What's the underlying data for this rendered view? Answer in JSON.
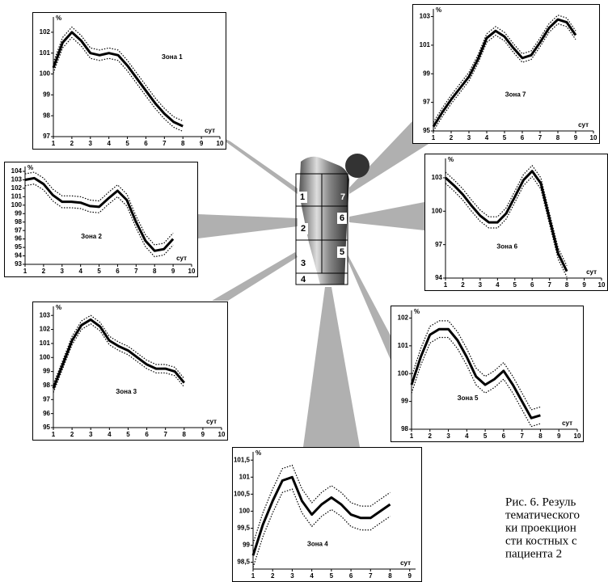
{
  "chart_data": [
    {
      "type": "line",
      "title": "Зона 1",
      "xlabel": "сут",
      "ylabel": "%",
      "xlim": [
        1,
        10
      ],
      "xticks": [
        1,
        2,
        3,
        4,
        5,
        6,
        7,
        8,
        9,
        10
      ],
      "ylim": [
        97,
        102.5
      ],
      "yticks": [
        97,
        98,
        99,
        100,
        101,
        102
      ],
      "x": [
        1,
        1.5,
        2,
        2.5,
        3,
        3.5,
        4,
        4.5,
        5,
        5.5,
        6,
        6.5,
        7,
        7.5,
        8
      ],
      "series": [
        {
          "color": "#000000",
          "values": [
            100.3,
            101.5,
            102,
            101.6,
            101,
            100.9,
            101,
            100.9,
            100.4,
            99.8,
            99.2,
            98.6,
            98.1,
            97.7,
            97.5
          ]
        },
        {
          "color": "#000000",
          "dashed": true,
          "values": [
            100.55,
            101.75,
            102.25,
            101.85,
            101.25,
            101.15,
            101.25,
            101.15,
            100.65,
            100.05,
            99.45,
            98.85,
            98.35,
            97.95,
            97.75
          ]
        },
        {
          "color": "#000000",
          "dashed": true,
          "values": [
            100.05,
            101.25,
            101.75,
            101.35,
            100.75,
            100.65,
            100.75,
            100.65,
            100.15,
            99.55,
            98.95,
            98.35,
            97.85,
            97.45,
            97.25
          ]
        }
      ]
    },
    {
      "type": "line",
      "title": "Зона 7",
      "xlabel": "сут",
      "ylabel": "%",
      "xlim": [
        1,
        10
      ],
      "xticks": [
        1,
        2,
        3,
        4,
        5,
        6,
        7,
        8,
        9,
        10
      ],
      "ylim": [
        95,
        103.2
      ],
      "yticks": [
        95,
        97,
        99,
        101,
        103
      ],
      "x": [
        1,
        1.5,
        2,
        2.5,
        3,
        3.5,
        4,
        4.5,
        5,
        5.5,
        6,
        6.5,
        7,
        7.5,
        8,
        8.5,
        9
      ],
      "series": [
        {
          "color": "#000000",
          "values": [
            95.3,
            96.3,
            97.2,
            98,
            98.8,
            100,
            101.5,
            102,
            101.6,
            100.8,
            100.1,
            100.3,
            101.2,
            102.2,
            102.8,
            102.6,
            101.7
          ]
        },
        {
          "color": "#000000",
          "dashed": true,
          "values": [
            95.6,
            96.6,
            97.5,
            98.3,
            99.1,
            100.3,
            101.8,
            102.3,
            101.9,
            101.1,
            100.4,
            100.6,
            101.5,
            102.5,
            103.1,
            102.9,
            102
          ]
        },
        {
          "color": "#000000",
          "dashed": true,
          "values": [
            95,
            96,
            96.9,
            97.7,
            98.5,
            99.7,
            101.2,
            101.7,
            101.3,
            100.5,
            99.8,
            100,
            100.9,
            101.9,
            102.5,
            102.3,
            101.4
          ]
        }
      ]
    },
    {
      "type": "line",
      "title": "Зона 2",
      "xlabel": "сут",
      "ylabel": "%",
      "xlim": [
        1,
        10
      ],
      "xticks": [
        1,
        2,
        3,
        4,
        5,
        6,
        7,
        8,
        9,
        10
      ],
      "ylim": [
        93,
        104
      ],
      "yticks": [
        93,
        94,
        95,
        96,
        97,
        98,
        99,
        100,
        101,
        102,
        103,
        104
      ],
      "x": [
        1,
        1.5,
        2,
        2.5,
        3,
        3.5,
        4,
        4.5,
        5,
        5.5,
        6,
        6.5,
        7,
        7.5,
        8,
        8.5,
        9
      ],
      "series": [
        {
          "color": "#000000",
          "values": [
            103,
            103.2,
            102.5,
            101.2,
            100.4,
            100.4,
            100.3,
            99.9,
            99.8,
            100.8,
            101.7,
            100.6,
            98,
            95.8,
            94.6,
            94.8,
            96
          ]
        },
        {
          "color": "#000000",
          "dashed": true,
          "values": [
            103.7,
            103.9,
            103.2,
            101.9,
            101.1,
            101.1,
            101,
            100.6,
            100.5,
            101.5,
            102.4,
            101.3,
            98.7,
            96.5,
            95.3,
            95.5,
            96.7
          ]
        },
        {
          "color": "#000000",
          "dashed": true,
          "values": [
            102.3,
            102.5,
            101.8,
            100.5,
            99.7,
            99.7,
            99.6,
            99.2,
            99.1,
            100.1,
            101,
            99.9,
            97.3,
            95.1,
            93.9,
            94.1,
            95.3
          ]
        }
      ]
    },
    {
      "type": "line",
      "title": "Зона 6",
      "xlabel": "сут",
      "ylabel": "%",
      "xlim": [
        1,
        10
      ],
      "xticks": [
        1,
        2,
        3,
        4,
        5,
        6,
        7,
        8,
        9,
        10
      ],
      "ylim": [
        94,
        104.3
      ],
      "yticks": [
        94,
        97,
        100,
        103
      ],
      "x": [
        1,
        1.5,
        2,
        2.5,
        3,
        3.5,
        4,
        4.5,
        5,
        5.5,
        6,
        6.5,
        7,
        7.5,
        8
      ],
      "series": [
        {
          "color": "#000000",
          "values": [
            103,
            102.3,
            101.5,
            100.5,
            99.6,
            99,
            99,
            99.8,
            101.3,
            102.8,
            103.6,
            102.5,
            99.3,
            96.2,
            94.6
          ]
        },
        {
          "color": "#000000",
          "dashed": true,
          "values": [
            103.5,
            102.8,
            102,
            101,
            100.1,
            99.5,
            99.5,
            100.3,
            101.8,
            103.3,
            104.1,
            103,
            99.8,
            96.7,
            95.1
          ]
        },
        {
          "color": "#000000",
          "dashed": true,
          "values": [
            102.5,
            101.8,
            101,
            100,
            99.1,
            98.5,
            98.5,
            99.3,
            100.8,
            102.3,
            103.1,
            102,
            98.8,
            95.7,
            94.1
          ]
        }
      ]
    },
    {
      "type": "line",
      "title": "Зона 3",
      "xlabel": "сут",
      "ylabel": "%",
      "xlim": [
        1,
        10
      ],
      "xticks": [
        1,
        2,
        3,
        4,
        5,
        6,
        7,
        8,
        9,
        10
      ],
      "ylim": [
        95,
        103.3
      ],
      "yticks": [
        95,
        96,
        97,
        98,
        99,
        100,
        101,
        102,
        103
      ],
      "x": [
        1,
        1.5,
        2,
        2.5,
        3,
        3.5,
        4,
        4.5,
        5,
        5.5,
        6,
        6.5,
        7,
        7.5,
        8
      ],
      "series": [
        {
          "color": "#000000",
          "values": [
            97.8,
            99.5,
            101.2,
            102.3,
            102.7,
            102.2,
            101.2,
            100.8,
            100.5,
            100,
            99.5,
            99.2,
            99.2,
            99,
            98.2
          ]
        },
        {
          "color": "#000000",
          "dashed": true,
          "values": [
            98.1,
            99.8,
            101.5,
            102.6,
            103,
            102.5,
            101.5,
            101.1,
            100.8,
            100.3,
            99.8,
            99.5,
            99.5,
            99.3,
            98.5
          ]
        },
        {
          "color": "#000000",
          "dashed": true,
          "values": [
            97.5,
            99.2,
            100.9,
            102,
            102.4,
            101.9,
            100.9,
            100.5,
            100.2,
            99.7,
            99.2,
            98.9,
            98.9,
            98.7,
            97.9
          ]
        }
      ]
    },
    {
      "type": "line",
      "title": "Зона 5",
      "xlabel": "сут",
      "ylabel": "%",
      "xlim": [
        1,
        10
      ],
      "xticks": [
        1,
        2,
        3,
        4,
        5,
        6,
        7,
        8,
        9,
        10
      ],
      "ylim": [
        98,
        102.1
      ],
      "yticks": [
        98,
        99,
        100,
        101,
        102
      ],
      "x": [
        1,
        1.5,
        2,
        2.5,
        3,
        3.5,
        4,
        4.5,
        5,
        5.5,
        6,
        6.5,
        7,
        7.5,
        8
      ],
      "series": [
        {
          "color": "#000000",
          "values": [
            99.6,
            100.6,
            101.4,
            101.6,
            101.6,
            101.2,
            100.6,
            99.9,
            99.6,
            99.8,
            100.1,
            99.6,
            99,
            98.4,
            98.5
          ]
        },
        {
          "color": "#000000",
          "dashed": true,
          "values": [
            99.9,
            100.9,
            101.7,
            101.9,
            101.9,
            101.5,
            100.9,
            100.2,
            99.9,
            100.1,
            100.4,
            99.9,
            99.3,
            98.7,
            98.8
          ]
        },
        {
          "color": "#000000",
          "dashed": true,
          "values": [
            99.3,
            100.3,
            101.1,
            101.3,
            101.3,
            100.9,
            100.3,
            99.6,
            99.3,
            99.5,
            99.8,
            99.3,
            98.7,
            98.1,
            98.2
          ]
        }
      ]
    },
    {
      "type": "line",
      "title": "Зона 4",
      "xlabel": "сут",
      "ylabel": "%",
      "xlim": [
        1,
        9.3
      ],
      "xticks": [
        1,
        2,
        3,
        4,
        5,
        6,
        7,
        8,
        9
      ],
      "ylim": [
        98.3,
        101.6
      ],
      "yticks": [
        {
          "value": 98.5,
          "label": "98,5"
        },
        99,
        {
          "value": 99.5,
          "label": "99,5"
        },
        100,
        {
          "value": 100.5,
          "label": "100,5"
        },
        101,
        {
          "value": 101.5,
          "label": "101,5"
        }
      ],
      "x": [
        1,
        1.5,
        2,
        2.5,
        3,
        3.5,
        4,
        4.5,
        5,
        5.5,
        6,
        6.5,
        7,
        7.5,
        8
      ],
      "series": [
        {
          "color": "#000000",
          "values": [
            98.7,
            99.6,
            100.3,
            100.9,
            101,
            100.3,
            99.9,
            100.2,
            100.4,
            100.2,
            99.9,
            99.8,
            99.8,
            100,
            100.2
          ]
        },
        {
          "color": "#000000",
          "dashed": true,
          "values": [
            99.05,
            99.95,
            100.65,
            101.25,
            101.35,
            100.65,
            100.25,
            100.55,
            100.75,
            100.55,
            100.25,
            100.15,
            100.15,
            100.35,
            100.55
          ]
        },
        {
          "color": "#000000",
          "dashed": true,
          "values": [
            98.35,
            99.25,
            99.95,
            100.55,
            100.65,
            99.95,
            99.55,
            99.85,
            100.05,
            99.85,
            99.55,
            99.45,
            99.45,
            99.65,
            99.85
          ]
        }
      ]
    }
  ],
  "femur_zones": [
    "1",
    "2",
    "3",
    "4",
    "5",
    "6",
    "7"
  ],
  "caption": [
    "Рис. 6. Резуль",
    "тематического",
    "ки проекцион",
    "сти костных с",
    "пациента 2"
  ]
}
